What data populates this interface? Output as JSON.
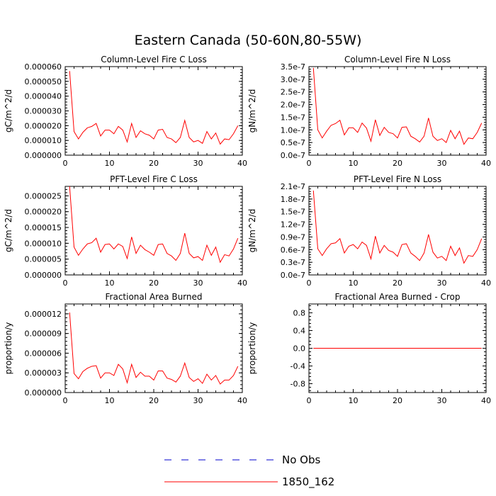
{
  "figure": {
    "title": "Eastern Canada (50-60N,80-55W)"
  },
  "legend": {
    "entries": [
      {
        "label": "No Obs",
        "color": "#0000cc",
        "style": "dashed"
      },
      {
        "label": "1850_162",
        "color": "#ff0000",
        "style": "solid"
      }
    ]
  },
  "chart_data": [
    {
      "type": "line",
      "title": "Column-Level Fire C Loss",
      "ylabel": "gC/m^2/d",
      "xlim": [
        0,
        40
      ],
      "ylim": [
        0,
        6e-05
      ],
      "xticks": [
        "0",
        "10",
        "20",
        "30",
        "40"
      ],
      "yticks": [
        {
          "value": 0,
          "label": "0.000000"
        },
        {
          "value": 1e-05,
          "label": "0.000010"
        },
        {
          "value": 2e-05,
          "label": "0.000020"
        },
        {
          "value": 3e-05,
          "label": "0.000030"
        },
        {
          "value": 4e-05,
          "label": "0.000040"
        },
        {
          "value": 5e-05,
          "label": "0.000050"
        },
        {
          "value": 6e-05,
          "label": "0.000060"
        }
      ],
      "series": [
        {
          "name": "1850_162",
          "color": "#ff0000",
          "x": [
            1,
            2,
            3,
            4,
            5,
            6,
            7,
            8,
            9,
            10,
            11,
            12,
            13,
            14,
            15,
            16,
            17,
            18,
            19,
            20,
            21,
            22,
            23,
            24,
            25,
            26,
            27,
            28,
            29,
            30,
            31,
            32,
            33,
            34,
            35,
            36,
            37,
            38,
            39
          ],
          "y": [
            5.7e-05,
            1.6e-05,
            1.1e-05,
            1.55e-05,
            1.85e-05,
            1.95e-05,
            2.15e-05,
            1.3e-05,
            1.7e-05,
            1.7e-05,
            1.45e-05,
            1.95e-05,
            1.7e-05,
            9e-06,
            2.15e-05,
            1.2e-05,
            1.65e-05,
            1.45e-05,
            1.35e-05,
            1.1e-05,
            1.7e-05,
            1.75e-05,
            1.2e-05,
            1.1e-05,
            8.5e-06,
            1.2e-05,
            2.35e-05,
            1.2e-05,
            9e-06,
            1e-05,
            8e-06,
            1.6e-05,
            1.1e-05,
            1.5e-05,
            7.5e-06,
            1.1e-05,
            1.05e-05,
            1.45e-05,
            2e-05
          ]
        }
      ]
    },
    {
      "type": "line",
      "title": "Column-Level Fire N Loss",
      "ylabel": "gN/m^2/d",
      "xlim": [
        0,
        40
      ],
      "ylim": [
        0,
        3.5e-07
      ],
      "xticks": [
        "0",
        "10",
        "20",
        "30",
        "40"
      ],
      "yticks": [
        {
          "value": 0,
          "label": "0.0e-7"
        },
        {
          "value": 5e-08,
          "label": "0.5e-7"
        },
        {
          "value": 1e-07,
          "label": "1.0e-7"
        },
        {
          "value": 1.5e-07,
          "label": "1.5e-7"
        },
        {
          "value": 2e-07,
          "label": "2.0e-7"
        },
        {
          "value": 2.5e-07,
          "label": "2.5e-7"
        },
        {
          "value": 3e-07,
          "label": "3.0e-7"
        },
        {
          "value": 3.5e-07,
          "label": "3.5e-7"
        }
      ],
      "series": [
        {
          "name": "1850_162",
          "color": "#ff0000",
          "x": [
            1,
            2,
            3,
            4,
            5,
            6,
            7,
            8,
            9,
            10,
            11,
            12,
            13,
            14,
            15,
            16,
            17,
            18,
            19,
            20,
            21,
            22,
            23,
            24,
            25,
            26,
            27,
            28,
            29,
            30,
            31,
            32,
            33,
            34,
            35,
            36,
            37,
            38,
            39
          ],
          "y": [
            3.45e-07,
            1e-07,
            6.8e-08,
            9.5e-08,
            1.18e-07,
            1.25e-07,
            1.38e-07,
            8e-08,
            1.08e-07,
            1.08e-07,
            9e-08,
            1.27e-07,
            1.07e-07,
            5.5e-08,
            1.4e-07,
            7.8e-08,
            1.1e-07,
            9e-08,
            8.5e-08,
            6.8e-08,
            1.1e-07,
            1.12e-07,
            7.5e-08,
            6.5e-08,
            5.2e-08,
            7.5e-08,
            1.47e-07,
            7.5e-08,
            5.8e-08,
            6.5e-08,
            5e-08,
            9.8e-08,
            6.5e-08,
            9.5e-08,
            4.3e-08,
            6.8e-08,
            6.5e-08,
            9e-08,
            1.27e-07
          ]
        }
      ]
    },
    {
      "type": "line",
      "title": "PFT-Level Fire C Loss",
      "ylabel": "gC/m^2/d",
      "xlim": [
        0,
        40
      ],
      "ylim": [
        0,
        2.8e-05
      ],
      "xticks": [
        "0",
        "10",
        "20",
        "30",
        "40"
      ],
      "yticks": [
        {
          "value": 0,
          "label": "0.000000"
        },
        {
          "value": 5e-06,
          "label": "0.000005"
        },
        {
          "value": 1e-05,
          "label": "0.000010"
        },
        {
          "value": 1.5e-05,
          "label": "0.000015"
        },
        {
          "value": 2e-05,
          "label": "0.000020"
        },
        {
          "value": 2.5e-05,
          "label": "0.000025"
        }
      ],
      "series": [
        {
          "name": "1850_162",
          "color": "#ff0000",
          "x": [
            1,
            2,
            3,
            4,
            5,
            6,
            7,
            8,
            9,
            10,
            11,
            12,
            13,
            14,
            15,
            16,
            17,
            18,
            19,
            20,
            21,
            22,
            23,
            24,
            25,
            26,
            27,
            28,
            29,
            30,
            31,
            32,
            33,
            34,
            35,
            36,
            37,
            38,
            39
          ],
          "y": [
            2.8e-05,
            8.8e-06,
            6.2e-06,
            8.2e-06,
            9.8e-06,
            1.02e-05,
            1.16e-05,
            7.2e-06,
            9.6e-06,
            9.8e-06,
            8.2e-06,
            9.8e-06,
            9e-06,
            5.2e-06,
            1.2e-05,
            6.8e-06,
            9.4e-06,
            8e-06,
            7.2e-06,
            6.2e-06,
            9.6e-06,
            9.8e-06,
            6.8e-06,
            6e-06,
            4.6e-06,
            6.8e-06,
            1.32e-05,
            6.8e-06,
            5.4e-06,
            5.8e-06,
            4.6e-06,
            9.4e-06,
            6.2e-06,
            8.8e-06,
            4e-06,
            6.4e-06,
            6e-06,
            8.2e-06,
            1.16e-05
          ]
        }
      ]
    },
    {
      "type": "line",
      "title": "PFT-Level Fire N Loss",
      "ylabel": "gN/m^2/d",
      "xlim": [
        0,
        40
      ],
      "ylim": [
        0,
        2.1e-07
      ],
      "xticks": [
        "0",
        "10",
        "20",
        "30",
        "40"
      ],
      "yticks": [
        {
          "value": 0,
          "label": "0.0e-7"
        },
        {
          "value": 3e-08,
          "label": "0.3e-7"
        },
        {
          "value": 6e-08,
          "label": "0.6e-7"
        },
        {
          "value": 9e-08,
          "label": "0.9e-7"
        },
        {
          "value": 1.2e-07,
          "label": "1.2e-7"
        },
        {
          "value": 1.5e-07,
          "label": "1.5e-7"
        },
        {
          "value": 1.8e-07,
          "label": "1.8e-7"
        },
        {
          "value": 2.1e-07,
          "label": "2.1e-7"
        }
      ],
      "series": [
        {
          "name": "1850_162",
          "color": "#ff0000",
          "x": [
            1,
            2,
            3,
            4,
            5,
            6,
            7,
            8,
            9,
            10,
            11,
            12,
            13,
            14,
            15,
            16,
            17,
            18,
            19,
            20,
            21,
            22,
            23,
            24,
            25,
            26,
            27,
            28,
            29,
            30,
            31,
            32,
            33,
            34,
            35,
            36,
            37,
            38,
            39
          ],
          "y": [
            2e-07,
            6.2e-08,
            4.6e-08,
            6.2e-08,
            7.4e-08,
            7.6e-08,
            8.6e-08,
            5.2e-08,
            6.8e-08,
            7.2e-08,
            6.2e-08,
            7.8e-08,
            7e-08,
            3.8e-08,
            9.2e-08,
            5.2e-08,
            7e-08,
            5.8e-08,
            5.4e-08,
            4.4e-08,
            7.2e-08,
            7.4e-08,
            5.2e-08,
            4.4e-08,
            3.4e-08,
            5.2e-08,
            9.6e-08,
            5.4e-08,
            4e-08,
            4.4e-08,
            3.4e-08,
            6.8e-08,
            4.6e-08,
            6.4e-08,
            2.8e-08,
            4.6e-08,
            4.4e-08,
            6e-08,
            8.6e-08
          ]
        }
      ]
    },
    {
      "type": "line",
      "title": "Fractional Area Burned",
      "ylabel": "proportion/y",
      "xlim": [
        0,
        40
      ],
      "ylim": [
        0,
        1.35e-05
      ],
      "xticks": [
        "0",
        "10",
        "20",
        "30",
        "40"
      ],
      "yticks": [
        {
          "value": 0,
          "label": "0.000000"
        },
        {
          "value": 3e-06,
          "label": "0.000003"
        },
        {
          "value": 6e-06,
          "label": "0.000006"
        },
        {
          "value": 9e-06,
          "label": "0.000009"
        },
        {
          "value": 1.2e-05,
          "label": "0.000012"
        }
      ],
      "series": [
        {
          "name": "1850_162",
          "color": "#ff0000",
          "x": [
            1,
            2,
            3,
            4,
            5,
            6,
            7,
            8,
            9,
            10,
            11,
            12,
            13,
            14,
            15,
            16,
            17,
            18,
            19,
            20,
            21,
            22,
            23,
            24,
            25,
            26,
            27,
            28,
            29,
            30,
            31,
            32,
            33,
            34,
            35,
            36,
            37,
            38,
            39
          ],
          "y": [
            1.22e-05,
            2.9e-06,
            2.1e-06,
            3.2e-06,
            3.7e-06,
            4e-06,
            4.1e-06,
            2.2e-06,
            3e-06,
            3e-06,
            2.6e-06,
            4.3e-06,
            3.6e-06,
            1.5e-06,
            4.3e-06,
            2.3e-06,
            3.1e-06,
            2.5e-06,
            2.5e-06,
            1.9e-06,
            3.3e-06,
            3.3e-06,
            2.2e-06,
            2e-06,
            1.6e-06,
            2.5e-06,
            4.5e-06,
            2.3e-06,
            1.7e-06,
            2.1e-06,
            1.4e-06,
            2.8e-06,
            1.9e-06,
            2.6e-06,
            1.3e-06,
            1.9e-06,
            1.9e-06,
            2.6e-06,
            4e-06
          ]
        }
      ]
    },
    {
      "type": "line",
      "title": "Fractional Area Burned - Crop",
      "ylabel": "proportion/y",
      "xlim": [
        0,
        40
      ],
      "ylim": [
        -1,
        1
      ],
      "xticks": [
        "0",
        "10",
        "20",
        "30",
        "40"
      ],
      "yticks": [
        {
          "value": -0.8,
          "label": "-0.8"
        },
        {
          "value": -0.4,
          "label": "-0.4"
        },
        {
          "value": 0,
          "label": "0.0"
        },
        {
          "value": 0.4,
          "label": "0.4"
        },
        {
          "value": 0.8,
          "label": "0.8"
        }
      ],
      "series": [
        {
          "name": "1850_162",
          "color": "#ff0000",
          "x": [
            1,
            39
          ],
          "y": [
            0,
            0
          ]
        }
      ]
    }
  ]
}
